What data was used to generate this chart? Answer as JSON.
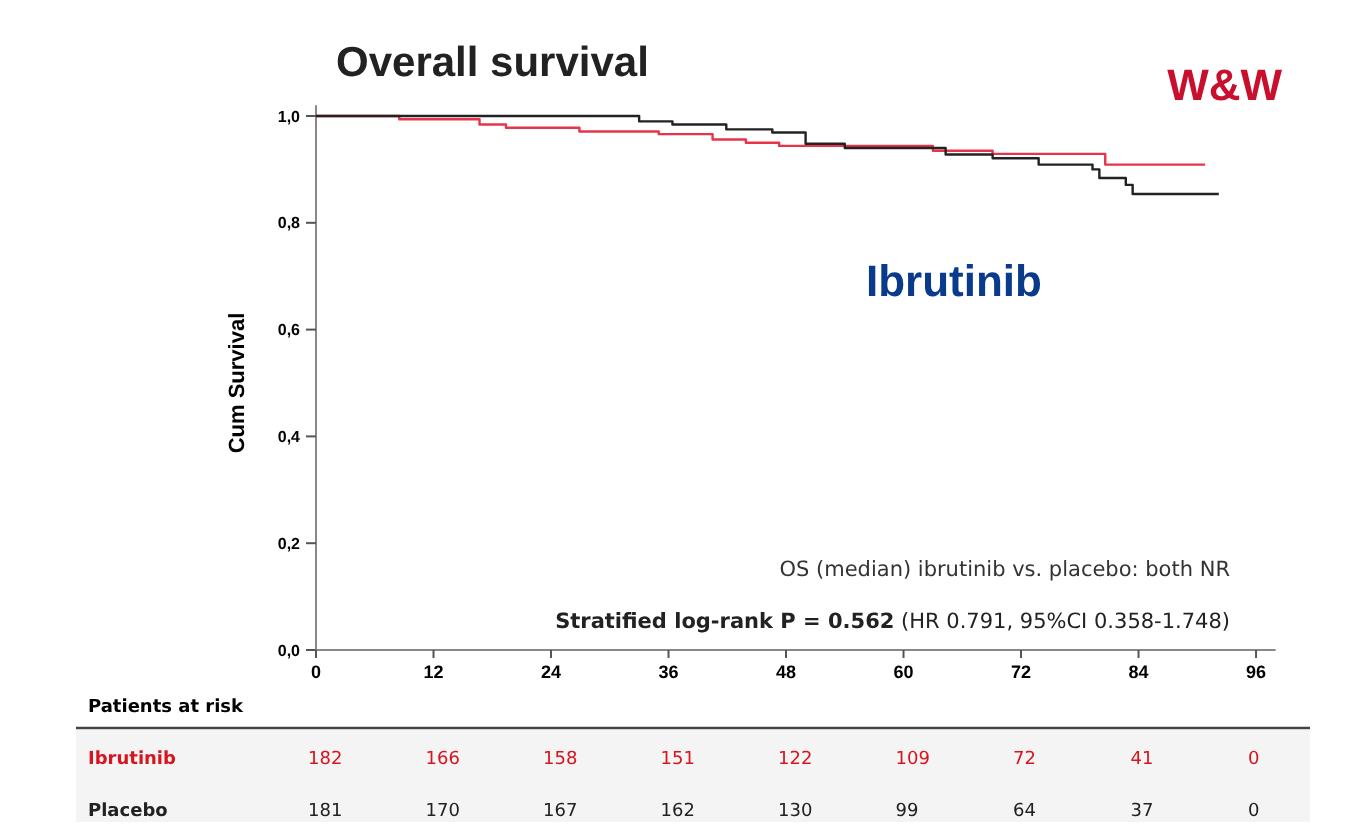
{
  "chart_data": {
    "type": "step",
    "title": "Overall survival",
    "ylabel": "Cum Survival",
    "xlim": [
      0,
      98
    ],
    "xticks": [
      0,
      12,
      24,
      36,
      48,
      60,
      72,
      84,
      96
    ],
    "ylim": [
      0,
      1.02
    ],
    "yticks": [
      {
        "value": 0,
        "label": "0,0"
      },
      {
        "value": 0.2,
        "label": "0,2"
      },
      {
        "value": 0.4,
        "label": "0,4"
      },
      {
        "value": 0.6,
        "label": "0,6"
      },
      {
        "value": 0.8,
        "label": "0,8"
      },
      {
        "value": 1,
        "label": "1,0"
      }
    ],
    "series": [
      {
        "color": "#e8344a",
        "x": [
          0,
          8.5,
          16.7,
          19.4,
          26.9,
          35,
          40.5,
          43.9,
          47.3,
          63,
          69.1,
          80.6,
          90.8
        ],
        "values": [
          1,
          0.994,
          0.984,
          0.978,
          0.971,
          0.966,
          0.956,
          0.95,
          0.944,
          0.935,
          0.929,
          0.909,
          0.909
        ]
      },
      {
        "color": "#222222",
        "x": [
          0,
          33,
          36.4,
          41.9,
          46.6,
          50,
          54,
          64.3,
          69.1,
          73.8,
          79.3,
          80,
          82.7,
          83.4,
          92.2
        ],
        "values": [
          1,
          0.99,
          0.984,
          0.975,
          0.969,
          0.948,
          0.94,
          0.928,
          0.921,
          0.909,
          0.9,
          0.884,
          0.871,
          0.854,
          0.854
        ]
      }
    ],
    "annotations": [
      "W&W",
      "Ibrutinib",
      "OS (median) ibrutinib vs. placebo: both NR",
      "Stratified log-rank P = 0.562",
      "(HR 0.791, 95%CI 0.358-1.748)",
      "Patients at risk",
      "Ibrutinib",
      "182",
      "166",
      "158",
      "151",
      "122",
      "109",
      "72",
      "41",
      "0",
      "Placebo",
      "181",
      "170",
      "167",
      "162",
      "130",
      "99",
      "64",
      "37",
      "0"
    ]
  }
}
